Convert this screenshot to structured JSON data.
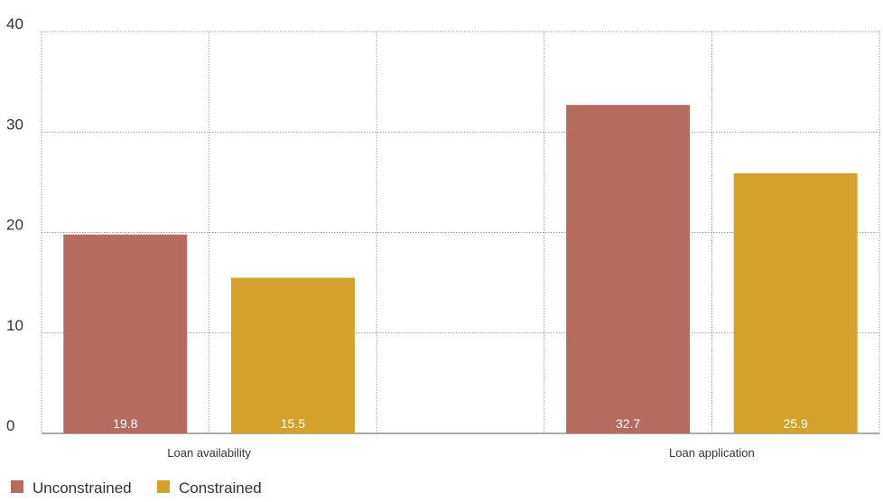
{
  "chart_data": {
    "type": "bar",
    "categories": [
      "Loan availability",
      "Loan application"
    ],
    "series": [
      {
        "name": "Unconstrained",
        "values": [
          19.8,
          32.7
        ],
        "color": "#b56c5f"
      },
      {
        "name": "Constrained",
        "values": [
          15.5,
          25.9
        ],
        "color": "#d4a22a"
      }
    ],
    "ylim": [
      0,
      40
    ],
    "yticks": [
      0,
      10,
      20,
      30,
      40
    ],
    "grid": true,
    "legend_position": "bottom-left",
    "data_labels": [
      "19.8",
      "15.5",
      "32.7",
      "25.9"
    ]
  }
}
